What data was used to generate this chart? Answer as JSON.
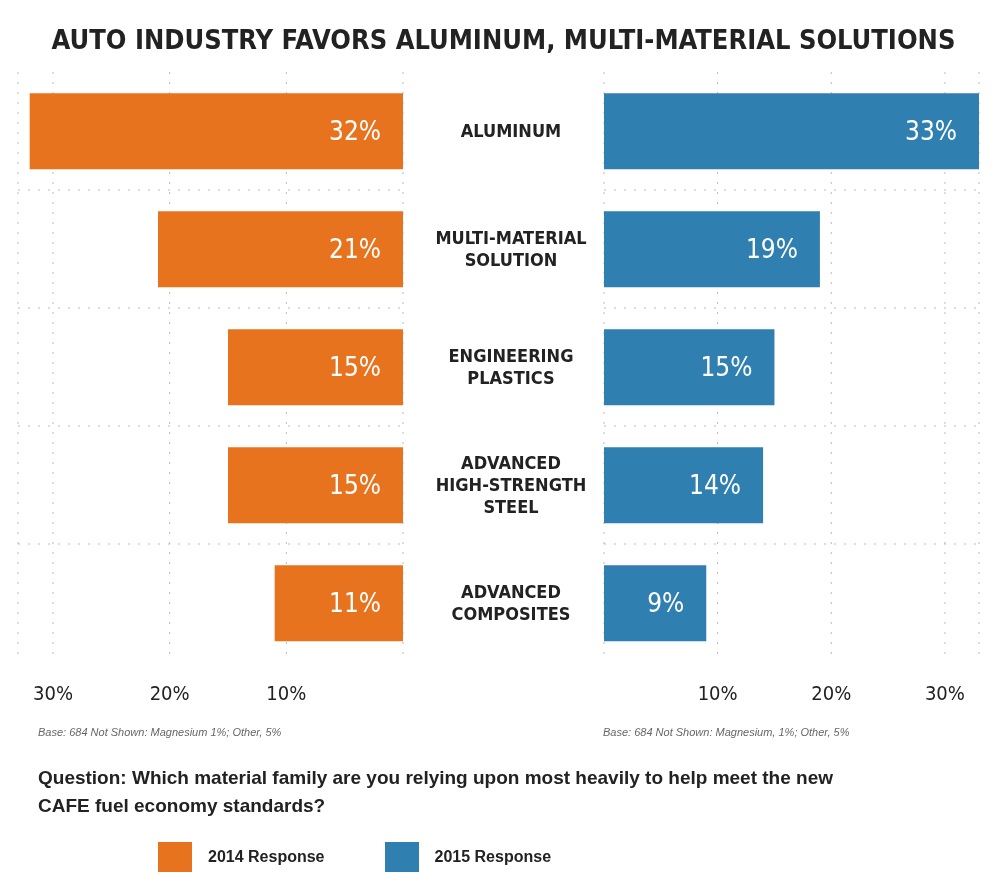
{
  "chart_data": [
    {
      "type": "bar",
      "orientation": "horizontal",
      "title": "AUTO INDUSTRY FAVORS ALUMINUM, MULTI-MATERIAL SOLUTIONS",
      "categories": [
        "ALUMINUM",
        "MULTI-MATERIAL SOLUTION",
        "ENGINEERING PLASTICS",
        "ADVANCED HIGH-STRENGTH STEEL",
        "ADVANCED COMPOSITES"
      ],
      "series": [
        {
          "name": "2014 Response",
          "color": "#e8731f",
          "values": [
            32,
            21,
            15,
            15,
            11
          ],
          "value_labels": [
            "32%",
            "21%",
            "15%",
            "15%",
            "11%"
          ]
        }
      ],
      "xlim": [
        33,
        0
      ],
      "xticks": [
        {
          "value": 30,
          "label": "30%"
        },
        {
          "value": 20,
          "label": "20%"
        },
        {
          "value": 10,
          "label": "10%"
        }
      ],
      "grid": true,
      "legend": "bottom",
      "annotations": [
        "Base: 684 Not Shown: Magnesium 1%; Other, 5%",
        "Question: Which material family are you relying upon most heavily to help meet the new CAFE fuel economy standards?"
      ]
    },
    {
      "type": "bar",
      "orientation": "horizontal",
      "categories": [
        null,
        null,
        null,
        null,
        null
      ],
      "series": [
        {
          "name": "2015 Response",
          "color": "#2f7fb0",
          "values": [
            33,
            19,
            15,
            14,
            9
          ],
          "value_labels": [
            "33%",
            "19%",
            "15%",
            "14%",
            "9%"
          ]
        }
      ],
      "xlim": [
        0,
        33
      ],
      "xticks": [
        {
          "value": 10,
          "label": "10%"
        },
        {
          "value": 20,
          "label": "20%"
        },
        {
          "value": 30,
          "label": "30%"
        }
      ],
      "grid": true,
      "legend": "bottom",
      "tick_labels": "x",
      "annotations": [
        "Base: 684 Not Shown: Magnesium, 1%; Other, 5%"
      ]
    }
  ]
}
